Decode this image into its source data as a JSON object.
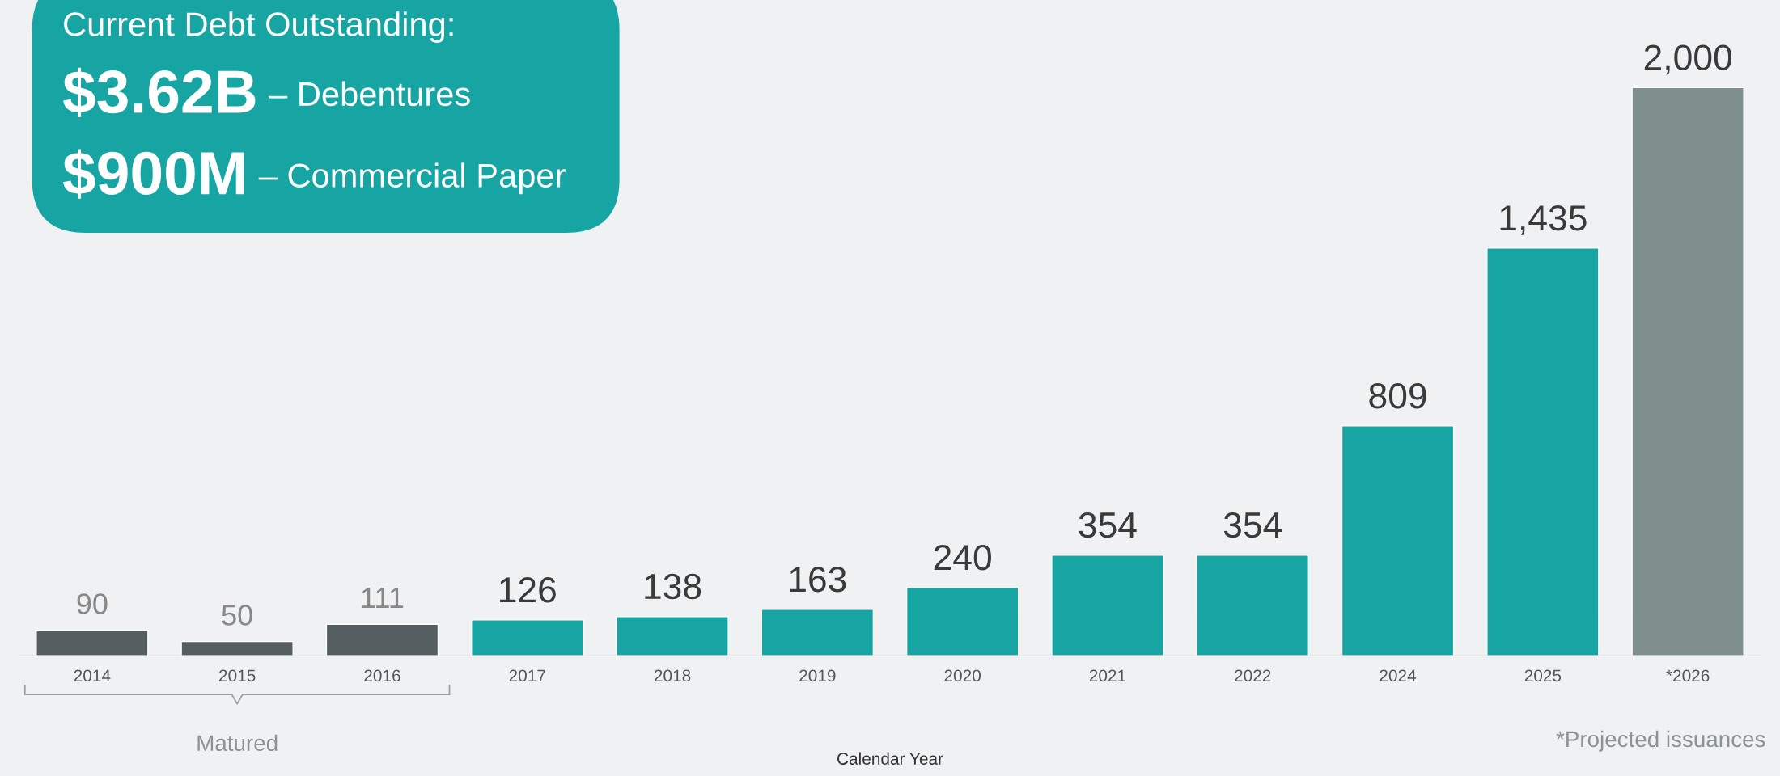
{
  "chart_data": {
    "type": "bar",
    "xlabel": "Calendar Year",
    "categories": [
      "2014",
      "2015",
      "2016",
      "2017",
      "2018",
      "2019",
      "2020",
      "2021",
      "2022",
      "2024",
      "2025",
      "*2026"
    ],
    "values": [
      90,
      50,
      111,
      126,
      138,
      163,
      240,
      354,
      354,
      809,
      1435,
      2000
    ],
    "colors": [
      "#555f61",
      "#555f61",
      "#555f61",
      "#16a5a2",
      "#16a5a2",
      "#16a5a2",
      "#16a5a2",
      "#16a5a2",
      "#16a5a2",
      "#16a5a2",
      "#16a5a2",
      "#7f8f8e"
    ],
    "value_labels": [
      "90",
      "50",
      "111",
      "126",
      "138",
      "163",
      "240",
      "354",
      "354",
      "809",
      "1,435",
      "2,000"
    ],
    "grid": false,
    "legend": false,
    "annotations": [
      "Current Debt Outstanding:",
      "$3.62B – Debentures",
      "$900M – Commercial Paper",
      "Matured",
      "*Projected issuances"
    ]
  }
}
